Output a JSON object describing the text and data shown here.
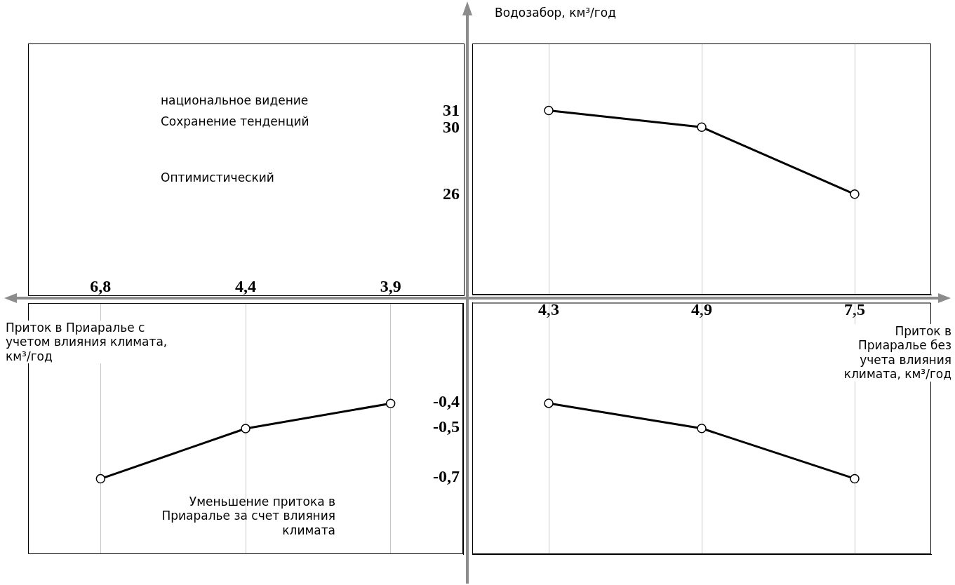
{
  "chart_data": [
    {
      "type": "other",
      "annotations": [
        "национальное видение",
        "Сохранение тенденций",
        "Оптимистический"
      ]
    },
    {
      "type": "line",
      "ylabel": "Водозабор, км³/год",
      "xlabel": "Приток в Приаралье без учета влияния климата, км³/год",
      "categories": [
        "4,3",
        "4,9",
        "7,5"
      ],
      "series": [
        {
          "color": "#000000",
          "values": [
            31,
            30,
            26
          ]
        }
      ],
      "ylim": [
        20,
        35
      ],
      "yticks": [
        26,
        30,
        31
      ],
      "grid": "x",
      "marker": "circle"
    },
    {
      "type": "line",
      "categories": [
        "4,3",
        "4,9",
        "7,5"
      ],
      "series": [
        {
          "color": "#000000",
          "values": [
            -0.4,
            -0.5,
            -0.7
          ]
        }
      ],
      "ylim": [
        -1,
        0
      ],
      "yticks": [
        {
          "value": -0.4,
          "label": "-0,4"
        },
        {
          "value": -0.5,
          "label": "-0,5"
        },
        {
          "value": -0.7,
          "label": "-0,7"
        }
      ],
      "tick_labels": "y",
      "grid": "x",
      "marker": "circle"
    },
    {
      "type": "line",
      "xlabel": "Приток в Приаралье с учетом влияния климата, км³/год",
      "annotations": [
        "Уменьшение притока в Приаралье за счет влияния климата"
      ],
      "categories": [
        "6,8",
        "4,4",
        "3,9"
      ],
      "series": [
        {
          "color": "#000000",
          "values": [
            -0.7,
            -0.5,
            -0.4
          ]
        }
      ],
      "ylim": [
        -1,
        0
      ],
      "yticks": [
        {
          "value": -0.4,
          "label": null
        },
        {
          "value": -0.5,
          "label": null
        },
        {
          "value": -0.7,
          "label": null
        }
      ],
      "tick_labels": "x",
      "grid": "x",
      "marker": "circle"
    }
  ]
}
